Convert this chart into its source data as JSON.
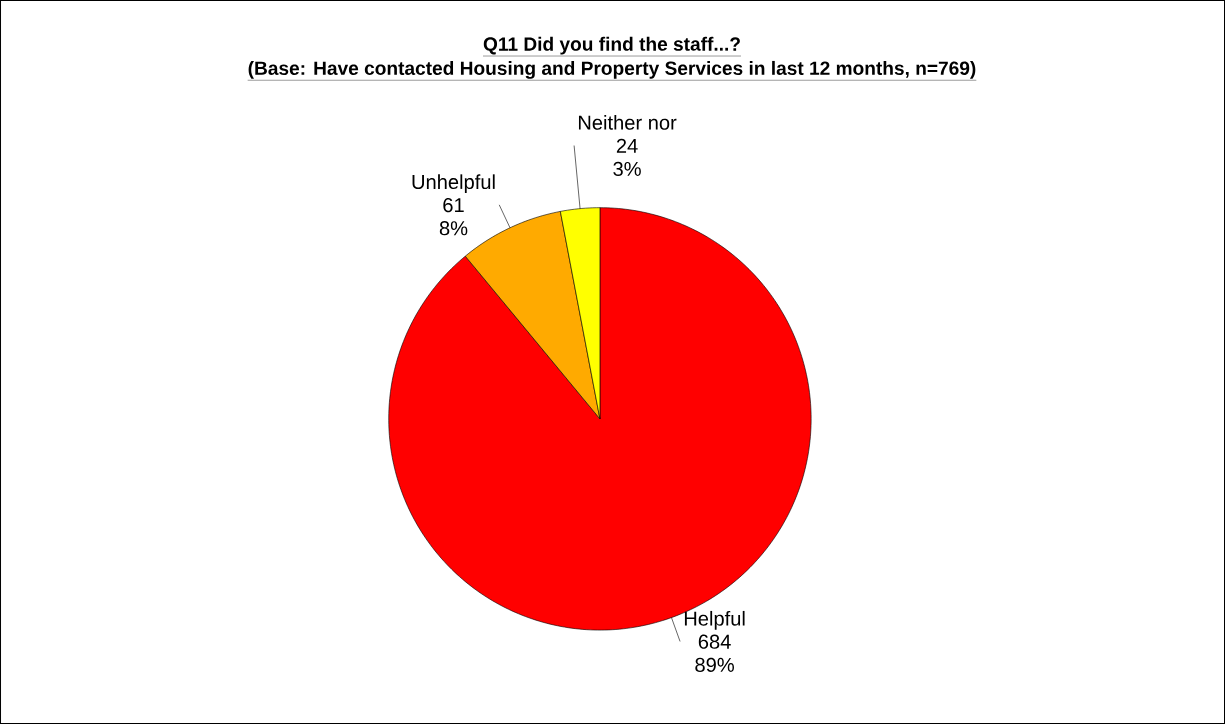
{
  "chart_data": {
    "type": "pie",
    "title": "Q11 Did you find the staff...?",
    "subtitle": "(Base: Have contacted Housing and Property Services in last 12 months, n=769)",
    "categories": [
      "Helpful",
      "Unhelpful",
      "Neither nor"
    ],
    "values": [
      89,
      8,
      3
    ],
    "colors": [
      "#ff0000",
      "#ffaa00",
      "#ffff00"
    ],
    "value_labels": [
      "89%",
      "8%",
      "3%"
    ],
    "annotations": [
      "684",
      "61",
      "24"
    ]
  }
}
